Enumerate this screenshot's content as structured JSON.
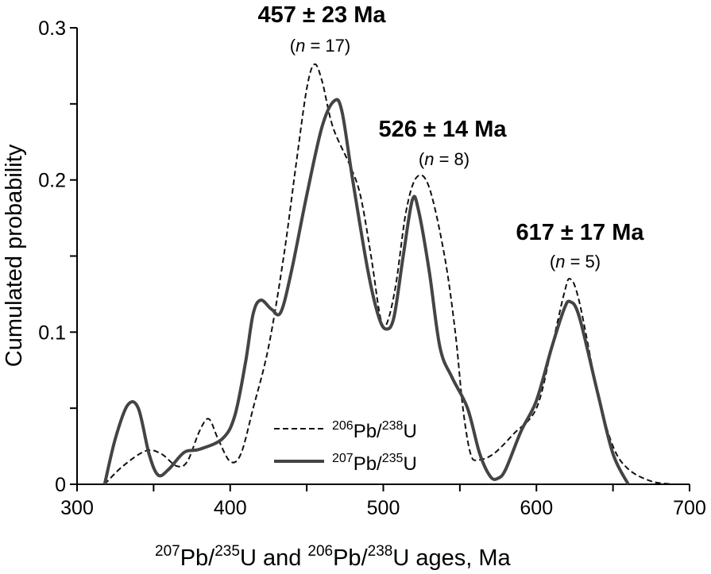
{
  "chart_data": {
    "type": "line",
    "title": "",
    "xlabel": {
      "parts": [
        "207",
        "Pb/",
        "235",
        "U and ",
        "206",
        "Pb/",
        "238",
        "U ages, Ma"
      ]
    },
    "ylabel": "Cumulated probability",
    "xlim": [
      300,
      700
    ],
    "ylim": [
      0,
      0.3
    ],
    "xticks": [
      "300",
      "400",
      "500",
      "600",
      "700"
    ],
    "xtick_values": [
      300,
      400,
      500,
      600,
      700
    ],
    "yticks": [
      "0",
      "0.1",
      "0.2",
      "0.3"
    ],
    "ytick_values": [
      0,
      0.1,
      0.2,
      0.3
    ],
    "grid": false,
    "legend_position": "bottom-center",
    "series": [
      {
        "name": "206Pb/238U",
        "legend": {
          "sup1": "206",
          "mid": "Pb/",
          "sup2": "238",
          "end": "U"
        },
        "style": "dashed",
        "color": "#111111",
        "x": [
          318,
          330,
          345,
          355,
          365,
          372,
          380,
          386,
          392,
          400,
          407,
          415,
          425,
          435,
          443,
          450,
          455,
          460,
          467,
          478,
          485,
          492,
          498,
          502,
          508,
          515,
          522,
          530,
          540,
          547,
          552,
          557,
          562,
          572,
          585,
          600,
          610,
          618,
          622,
          628,
          640,
          650,
          660,
          675,
          690
        ],
        "y": [
          0,
          0.012,
          0.022,
          0.02,
          0.012,
          0.015,
          0.035,
          0.043,
          0.03,
          0.015,
          0.02,
          0.05,
          0.09,
          0.15,
          0.21,
          0.26,
          0.276,
          0.265,
          0.235,
          0.21,
          0.19,
          0.15,
          0.11,
          0.105,
          0.13,
          0.18,
          0.202,
          0.195,
          0.15,
          0.1,
          0.05,
          0.02,
          0.016,
          0.02,
          0.033,
          0.05,
          0.09,
          0.125,
          0.135,
          0.12,
          0.06,
          0.025,
          0.01,
          0.002,
          0
        ]
      },
      {
        "name": "207Pb/235U",
        "legend": {
          "sup1": "207",
          "mid": "Pb/",
          "sup2": "235",
          "end": "U"
        },
        "style": "solid",
        "color": "#444444",
        "x": [
          318,
          325,
          333,
          340,
          347,
          353,
          360,
          370,
          380,
          395,
          403,
          410,
          415,
          420,
          427,
          433,
          440,
          450,
          460,
          468,
          473,
          480,
          490,
          497,
          502,
          507,
          513,
          519,
          523,
          530,
          537,
          545,
          555,
          563,
          570,
          575,
          580,
          590,
          600,
          610,
          618,
          622,
          628,
          640,
          650,
          660
        ],
        "y": [
          0,
          0.03,
          0.052,
          0.05,
          0.02,
          0.006,
          0.01,
          0.021,
          0.023,
          0.03,
          0.045,
          0.08,
          0.112,
          0.121,
          0.115,
          0.113,
          0.14,
          0.19,
          0.235,
          0.252,
          0.245,
          0.2,
          0.14,
          0.11,
          0.102,
          0.11,
          0.15,
          0.187,
          0.18,
          0.14,
          0.09,
          0.07,
          0.05,
          0.02,
          0.005,
          0.004,
          0.01,
          0.035,
          0.055,
          0.09,
          0.115,
          0.12,
          0.11,
          0.06,
          0.02,
          0
        ]
      }
    ],
    "annotations": [
      {
        "label": "457 ± 23 Ma",
        "n_prefix": "(",
        "n_var": "n",
        "n_rest": " = 17)",
        "x": 457,
        "y": 0.3
      },
      {
        "label": "526 ± 14 Ma",
        "n_prefix": "(",
        "n_var": "n",
        "n_rest": " = 8)",
        "x": 526,
        "y": 0.22
      },
      {
        "label": "617 ± 17 Ma",
        "n_prefix": "(",
        "n_var": "n",
        "n_rest": " = 5)",
        "x": 617,
        "y": 0.155
      }
    ]
  }
}
